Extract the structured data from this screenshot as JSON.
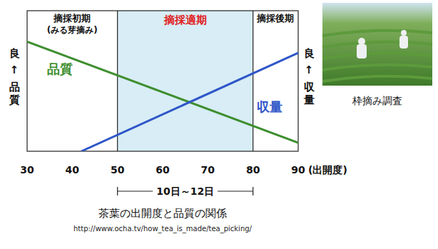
{
  "chart_data": {
    "type": "line",
    "title": "茶葉の出開度と品質の関係",
    "source": "http://www.ocha.tv/how_tea_is_made/tea_picking/",
    "xlabel": "(出開度)",
    "ylabel": [
      "良",
      "↑",
      "品質"
    ],
    "y2label": [
      "良",
      "↑",
      "収量"
    ],
    "xlim": [
      30,
      90
    ],
    "xticks": [
      30,
      40,
      50,
      60,
      70,
      80,
      90
    ],
    "ylim": [
      0,
      100
    ],
    "yticks": [],
    "y2lim": [
      0,
      100
    ],
    "y2ticks": [],
    "tick_labels": "x",
    "grid": false,
    "series": [
      {
        "name": "品質",
        "color": "#3e8e2f",
        "x": [
          30,
          90
        ],
        "values": [
          78,
          6
        ]
      },
      {
        "name": "収量",
        "color": "#2f56c8",
        "x": [
          42,
          90
        ],
        "values": [
          0,
          70
        ],
        "axis": "y2"
      }
    ],
    "phases": [
      {
        "label": "摘採初期",
        "note": "(みる芽摘み)",
        "from": 30,
        "to": 50
      },
      {
        "label": "摘採適期",
        "from": 50,
        "to": 80,
        "color": "#d8edf6"
      },
      {
        "label": "摘採後期",
        "from": 80,
        "to": 90
      }
    ],
    "span": {
      "label": "10日～12日",
      "from": 50,
      "to": 80
    },
    "photo_caption": "枠摘み調査"
  }
}
